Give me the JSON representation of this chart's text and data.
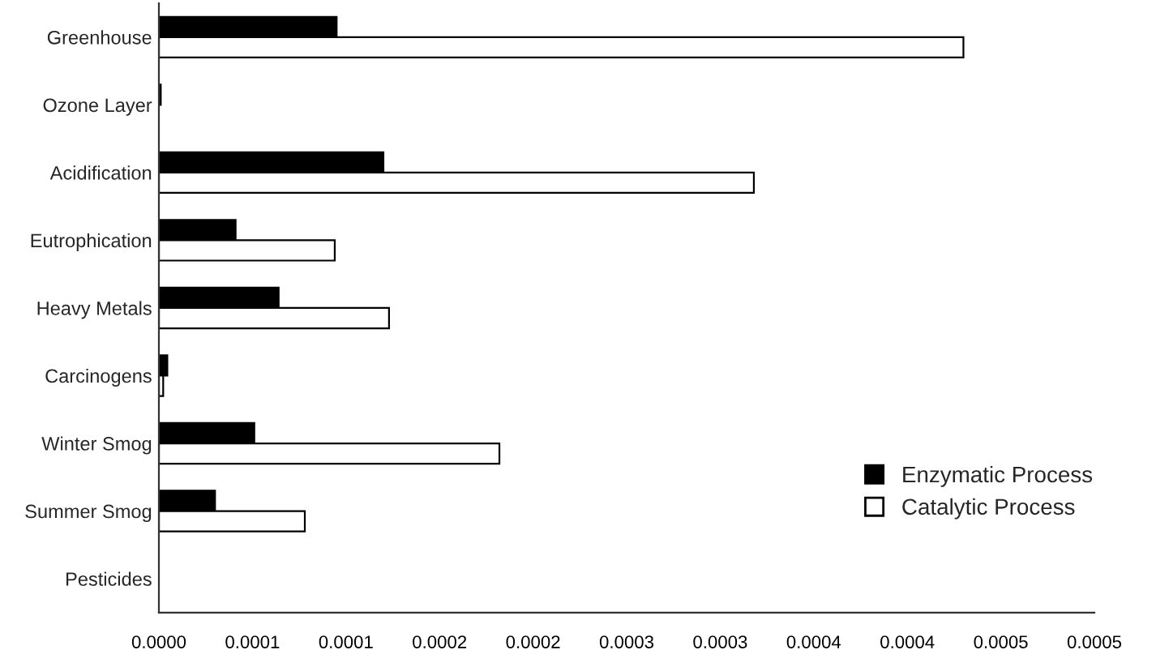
{
  "chart_data": {
    "type": "bar",
    "orientation": "horizontal",
    "categories": [
      "Greenhouse",
      "Ozone Layer",
      "Acidification",
      "Eutrophication",
      "Heavy Metals",
      "Carcinogens",
      "Winter Smog",
      "Summer Smog",
      "Pesticides"
    ],
    "series": [
      {
        "name": "Enzymatic Process",
        "color": "#000000",
        "values": [
          9.5e-05,
          1e-06,
          0.00012,
          4.1e-05,
          6.4e-05,
          4.5e-06,
          5.1e-05,
          3e-05,
          0
        ]
      },
      {
        "name": "Catalytic Process",
        "color": "#ffffff",
        "values": [
          0.00043,
          null,
          0.000318,
          9.4e-05,
          0.000123,
          2.3e-06,
          0.000182,
          7.8e-05,
          0
        ]
      }
    ],
    "xlim": [
      0,
      0.0005
    ],
    "xticks": [
      {
        "value": 0,
        "label": "0.0000"
      },
      {
        "value": 5e-05,
        "label": "0.0001"
      },
      {
        "value": 0.0001,
        "label": "0.0001"
      },
      {
        "value": 0.00015,
        "label": "0.0002"
      },
      {
        "value": 0.0002,
        "label": "0.0002"
      },
      {
        "value": 0.00025,
        "label": "0.0003"
      },
      {
        "value": 0.0003,
        "label": "0.0003"
      },
      {
        "value": 0.00035,
        "label": "0.0004"
      },
      {
        "value": 0.0004,
        "label": "0.0004"
      },
      {
        "value": 0.00045,
        "label": "0.0005"
      },
      {
        "value": 0.0005,
        "label": "0.0005"
      }
    ],
    "legend": "bottom right",
    "grid": false
  }
}
